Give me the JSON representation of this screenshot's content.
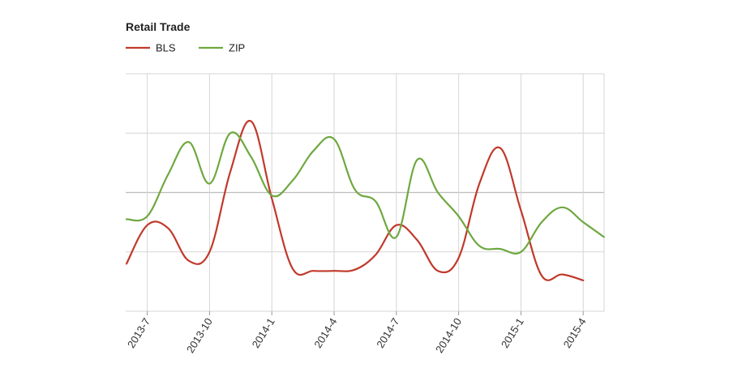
{
  "chart_data": {
    "type": "line",
    "title": "Retail Trade",
    "xlabel": "",
    "ylabel": "",
    "legend_position": "top-left",
    "grid": true,
    "x_ticks": [
      "2013-7",
      "2013-10",
      "2014-1",
      "2014-4",
      "2014-7",
      "2014-10",
      "2015-1",
      "2015-4"
    ],
    "ylim": [
      0,
      4
    ],
    "series": [
      {
        "name": "BLS",
        "color": "#c0392b",
        "x": [
          "2013-6",
          "2013-7",
          "2013-8",
          "2013-9",
          "2013-10",
          "2013-11",
          "2013-12",
          "2014-1",
          "2014-2",
          "2014-3",
          "2014-4",
          "2014-5",
          "2014-6",
          "2014-7",
          "2014-8",
          "2014-9",
          "2014-10",
          "2014-11",
          "2014-12",
          "2015-1",
          "2015-2",
          "2015-3",
          "2015-4"
        ],
        "values": [
          0.8,
          1.45,
          1.4,
          0.85,
          1.0,
          2.35,
          3.2,
          1.9,
          0.72,
          0.68,
          0.68,
          0.7,
          0.95,
          1.45,
          1.2,
          0.68,
          0.9,
          2.15,
          2.75,
          1.7,
          0.6,
          0.62,
          0.52
        ]
      },
      {
        "name": "ZIP",
        "color": "#6ea840",
        "x": [
          "2013-6",
          "2013-7",
          "2013-8",
          "2013-9",
          "2013-10",
          "2013-11",
          "2013-12",
          "2014-1",
          "2014-2",
          "2014-3",
          "2014-4",
          "2014-5",
          "2014-6",
          "2014-7",
          "2014-8",
          "2014-9",
          "2014-10",
          "2014-11",
          "2014-12",
          "2015-1",
          "2015-2",
          "2015-3",
          "2015-4",
          "2015-5"
        ],
        "values": [
          1.55,
          1.6,
          2.3,
          2.85,
          2.15,
          3.0,
          2.6,
          1.95,
          2.2,
          2.7,
          2.9,
          2.05,
          1.85,
          1.25,
          2.55,
          2.0,
          1.6,
          1.1,
          1.05,
          1.0,
          1.5,
          1.75,
          1.5,
          1.25
        ]
      }
    ]
  }
}
